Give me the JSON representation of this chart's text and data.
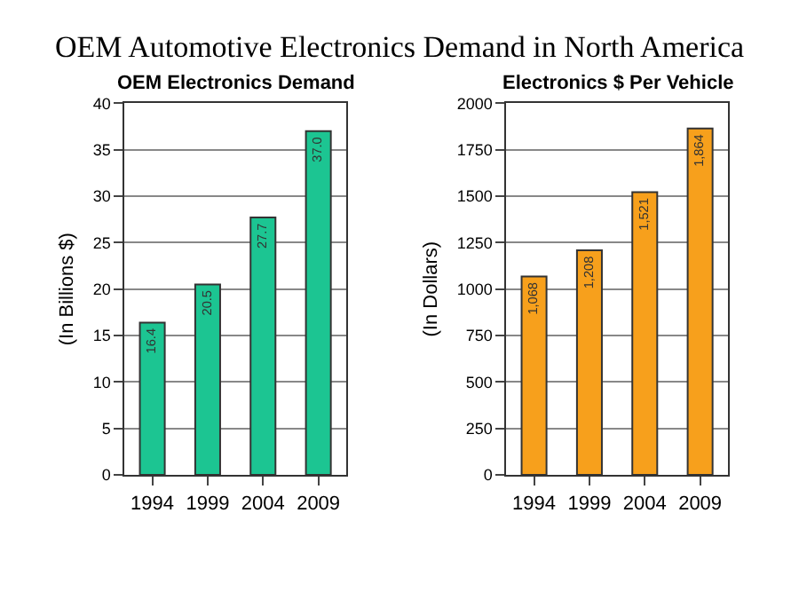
{
  "chart_data": [
    {
      "type": "bar",
      "title": "OEM Electronics Demand",
      "ylabel": "(In Billions $)",
      "annotations": [
        "OEM Automotive Electronics Demand in North America"
      ],
      "categories": [
        "1994",
        "1999",
        "2004",
        "2009"
      ],
      "values": [
        16.4,
        20.5,
        27.7,
        37.0
      ],
      "value_labels": [
        "16.4",
        "20.5",
        "27.7",
        "37.0"
      ],
      "color": "#1cc592",
      "ylim": [
        0,
        40
      ],
      "yticks": [
        0,
        5,
        10,
        15,
        20,
        25,
        30,
        35,
        40
      ],
      "grid": "y"
    },
    {
      "type": "bar",
      "title": "Electronics $ Per Vehicle",
      "ylabel": "(In Dollars)",
      "categories": [
        "1994",
        "1999",
        "2004",
        "2009"
      ],
      "values": [
        1068,
        1208,
        1521,
        1864
      ],
      "value_labels": [
        "1,068",
        "1,208",
        "1,521",
        "1,864"
      ],
      "color": "#f7a01c",
      "ylim": [
        0,
        2000
      ],
      "yticks": [
        0,
        250,
        500,
        750,
        1000,
        1250,
        1500,
        1750,
        2000
      ],
      "grid": "y"
    }
  ]
}
